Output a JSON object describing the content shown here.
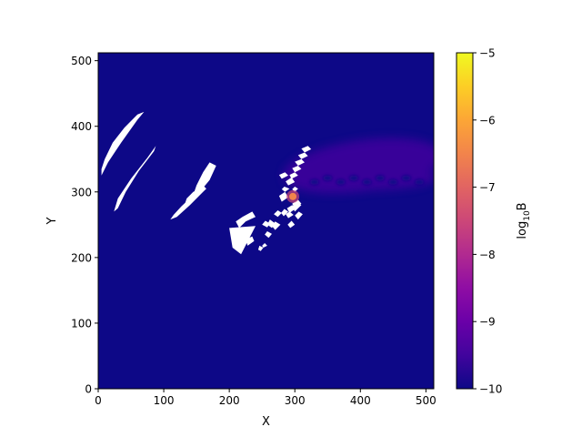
{
  "chart_data": {
    "type": "heatmap",
    "title": "",
    "xlabel": "X",
    "ylabel": "Y",
    "xlim": [
      0,
      512
    ],
    "ylim": [
      0,
      512
    ],
    "xticks": [
      0,
      100,
      200,
      300,
      400,
      500
    ],
    "yticks": [
      0,
      100,
      200,
      300,
      400,
      500
    ],
    "colormap": "plasma",
    "masked_color": "#ffffff",
    "background_value": -10,
    "colorbar": {
      "label_base": "log",
      "label_sub": "10",
      "label_var": "B",
      "range": [
        -10,
        -5
      ],
      "ticks": [
        "−10",
        "−9",
        "−8",
        "−7",
        "−6",
        "−5"
      ],
      "tick_values": [
        -10,
        -9,
        -8,
        -7,
        -6,
        -5
      ]
    },
    "features": [
      {
        "name": "hotspot",
        "x": 297,
        "y": 293,
        "value": -6.3
      },
      {
        "name": "plume",
        "x_range": [
          295,
          512
        ],
        "y_range": [
          285,
          395
        ],
        "value": -9.6
      }
    ],
    "masked_regions": [
      [
        [
          5,
          325
        ],
        [
          15,
          345
        ],
        [
          35,
          375
        ],
        [
          60,
          410
        ],
        [
          70,
          422
        ],
        [
          60,
          418
        ],
        [
          40,
          398
        ],
        [
          22,
          375
        ],
        [
          10,
          350
        ],
        [
          5,
          335
        ]
      ],
      [
        [
          24,
          270
        ],
        [
          30,
          290
        ],
        [
          50,
          320
        ],
        [
          75,
          352
        ],
        [
          88,
          370
        ],
        [
          85,
          362
        ],
        [
          62,
          332
        ],
        [
          42,
          300
        ],
        [
          30,
          275
        ]
      ],
      [
        [
          110,
          258
        ],
        [
          120,
          262
        ],
        [
          140,
          280
        ],
        [
          160,
          300
        ],
        [
          165,
          305
        ],
        [
          160,
          310
        ],
        [
          145,
          295
        ],
        [
          127,
          278
        ],
        [
          115,
          265
        ]
      ],
      [
        [
          130,
          275
        ],
        [
          140,
          285
        ],
        [
          150,
          295
        ],
        [
          155,
          305
        ],
        [
          145,
          300
        ],
        [
          135,
          290
        ]
      ],
      [
        [
          143,
          290
        ],
        [
          155,
          300
        ],
        [
          170,
          318
        ],
        [
          180,
          340
        ],
        [
          170,
          345
        ],
        [
          160,
          330
        ],
        [
          150,
          310
        ]
      ],
      [
        [
          200,
          245
        ],
        [
          240,
          248
        ],
        [
          218,
          205
        ],
        [
          205,
          215
        ]
      ],
      [
        [
          228,
          218
        ],
        [
          238,
          225
        ],
        [
          235,
          232
        ],
        [
          225,
          228
        ]
      ],
      [
        [
          248,
          210
        ],
        [
          252,
          215
        ],
        [
          246,
          218
        ],
        [
          244,
          212
        ]
      ],
      [
        [
          252,
          215
        ],
        [
          258,
          218
        ],
        [
          254,
          222
        ],
        [
          250,
          218
        ]
      ],
      [
        [
          260,
          230
        ],
        [
          265,
          236
        ],
        [
          258,
          240
        ],
        [
          254,
          235
        ]
      ],
      [
        [
          215,
          245
        ],
        [
          225,
          255
        ],
        [
          240,
          262
        ],
        [
          235,
          270
        ],
        [
          220,
          262
        ],
        [
          210,
          255
        ]
      ],
      [
        [
          258,
          246
        ],
        [
          262,
          252
        ],
        [
          255,
          256
        ],
        [
          250,
          250
        ]
      ],
      [
        [
          265,
          245
        ],
        [
          270,
          252
        ],
        [
          262,
          258
        ],
        [
          258,
          250
        ]
      ],
      [
        [
          270,
          242
        ],
        [
          278,
          250
        ],
        [
          270,
          255
        ],
        [
          265,
          248
        ]
      ],
      [
        [
          274,
          262
        ],
        [
          280,
          268
        ],
        [
          274,
          272
        ],
        [
          268,
          266
        ]
      ],
      [
        [
          283,
          263
        ],
        [
          290,
          270
        ],
        [
          284,
          274
        ],
        [
          279,
          268
        ]
      ],
      [
        [
          292,
          268
        ],
        [
          302,
          275
        ],
        [
          296,
          280
        ],
        [
          288,
          275
        ]
      ],
      [
        [
          300,
          275
        ],
        [
          310,
          282
        ],
        [
          305,
          288
        ],
        [
          296,
          282
        ]
      ],
      [
        [
          290,
          260
        ],
        [
          298,
          265
        ],
        [
          292,
          270
        ],
        [
          286,
          266
        ]
      ],
      [
        [
          300,
          270
        ],
        [
          310,
          280
        ],
        [
          303,
          284
        ],
        [
          296,
          278
        ]
      ],
      [
        [
          305,
          258
        ],
        [
          312,
          266
        ],
        [
          306,
          270
        ],
        [
          300,
          264
        ]
      ],
      [
        [
          293,
          245
        ],
        [
          300,
          250
        ],
        [
          295,
          256
        ],
        [
          289,
          250
        ]
      ],
      [
        [
          280,
          285
        ],
        [
          290,
          292
        ],
        [
          285,
          300
        ],
        [
          276,
          294
        ]
      ],
      [
        [
          285,
          300
        ],
        [
          292,
          305
        ],
        [
          284,
          308
        ],
        [
          280,
          304
        ]
      ],
      [
        [
          300,
          300
        ],
        [
          305,
          305
        ],
        [
          300,
          308
        ],
        [
          296,
          304
        ]
      ],
      [
        [
          290,
          310
        ],
        [
          300,
          315
        ],
        [
          295,
          322
        ],
        [
          286,
          316
        ]
      ],
      [
        [
          280,
          320
        ],
        [
          290,
          325
        ],
        [
          285,
          330
        ],
        [
          276,
          326
        ]
      ],
      [
        [
          295,
          320
        ],
        [
          305,
          325
        ],
        [
          300,
          330
        ],
        [
          292,
          326
        ]
      ],
      [
        [
          300,
          330
        ],
        [
          310,
          335
        ],
        [
          305,
          340
        ],
        [
          296,
          336
        ]
      ],
      [
        [
          305,
          340
        ],
        [
          315,
          345
        ],
        [
          310,
          350
        ],
        [
          300,
          346
        ]
      ],
      [
        [
          310,
          350
        ],
        [
          320,
          355
        ],
        [
          315,
          360
        ],
        [
          305,
          356
        ]
      ],
      [
        [
          315,
          360
        ],
        [
          325,
          365
        ],
        [
          320,
          370
        ],
        [
          310,
          366
        ]
      ]
    ]
  }
}
